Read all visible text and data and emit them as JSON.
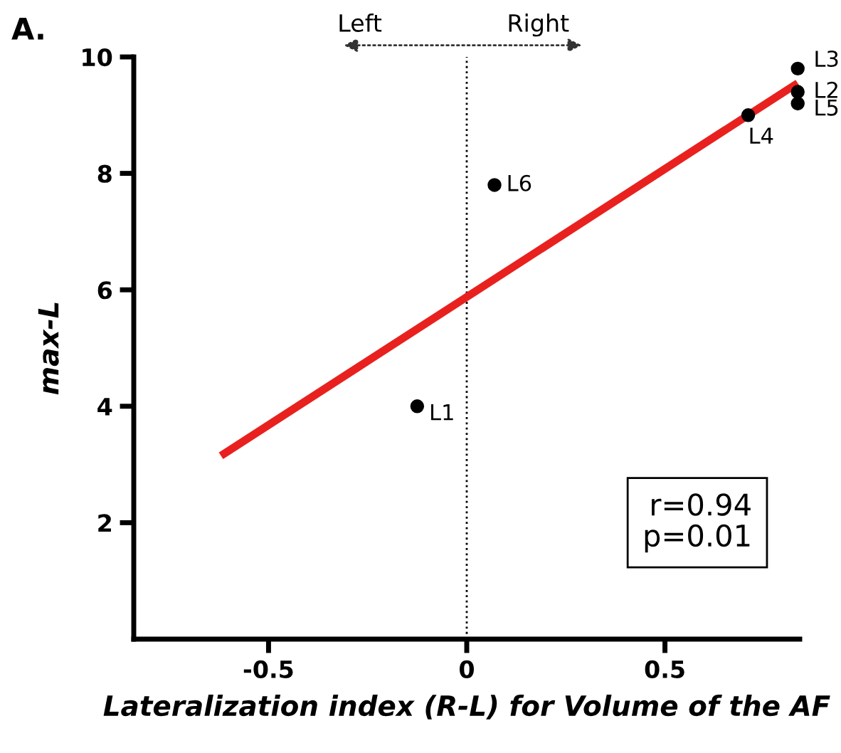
{
  "chart_data": {
    "type": "scatter",
    "xlabel": "Lateralization index (R-L) for Volume of the AF",
    "ylabel": "max-L",
    "x": [
      -0.125,
      0.835,
      0.835,
      0.71,
      0.835,
      0.07
    ],
    "series": [
      {
        "color": "#000000",
        "marker": "circle",
        "values": [
          4.0,
          9.4,
          9.8,
          9.0,
          9.2,
          7.8
        ]
      },
      {
        "type": "line",
        "marker": "none",
        "color": "#e8211f",
        "x": [
          -0.62,
          0.835
        ],
        "values": [
          3.15,
          9.55
        ]
      }
    ],
    "xlim": [
      -0.84,
      0.84
    ],
    "ylim": [
      0,
      10
    ],
    "xticks": [
      -0.5,
      0,
      0.5
    ],
    "yticks": [
      2,
      4,
      6,
      8,
      10
    ],
    "ref_lines": [
      {
        "axis": "x",
        "value": 0,
        "color": "#000000",
        "line_style": "dotted"
      }
    ],
    "annotations": [
      "A.",
      "Left",
      "Right",
      "r=0.94\np=0.01",
      {
        "text": "L1",
        "x": -0.125,
        "y": 4.0
      },
      {
        "text": "L2",
        "x": 0.835,
        "y": 9.4
      },
      {
        "text": "L3",
        "x": 0.835,
        "y": 9.8
      },
      {
        "text": "L4",
        "x": 0.71,
        "y": 9.0
      },
      {
        "text": "L5",
        "x": 0.835,
        "y": 9.2
      },
      {
        "text": "L6",
        "x": 0.07,
        "y": 7.8
      }
    ],
    "grid": false
  }
}
